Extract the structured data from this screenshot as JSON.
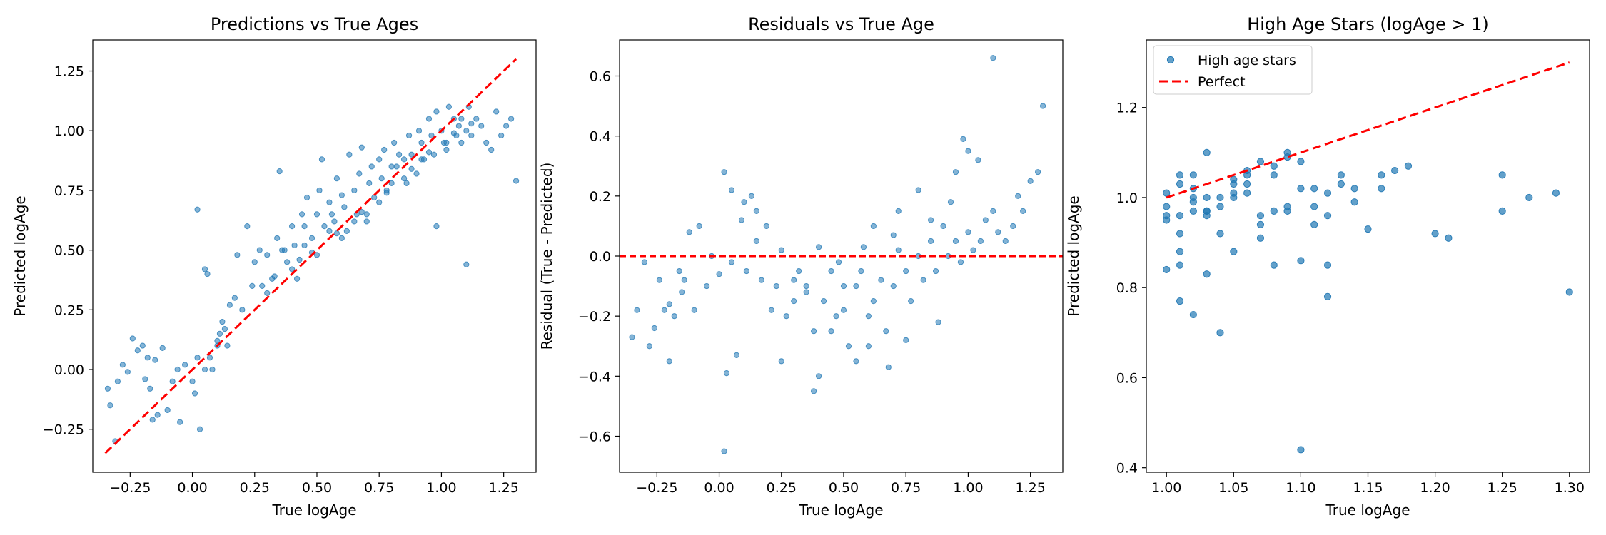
{
  "colors": {
    "points": "#1f77b4",
    "reference_line": "#ff0000",
    "legend_border": "#cccccc"
  },
  "chart_data": [
    {
      "type": "scatter",
      "title": "Predictions vs True Ages",
      "xlabel": "True logAge",
      "ylabel": "Predicted logAge",
      "xlim": [
        -0.4,
        1.38
      ],
      "ylim": [
        -0.43,
        1.38
      ],
      "xticks": [
        -0.25,
        0.0,
        0.25,
        0.5,
        0.75,
        1.0,
        1.25
      ],
      "xtick_labels": [
        "−0.25",
        "0.00",
        "0.25",
        "0.50",
        "0.75",
        "1.00",
        "1.25"
      ],
      "yticks": [
        -0.25,
        0.0,
        0.25,
        0.5,
        0.75,
        1.0,
        1.25
      ],
      "ytick_labels": [
        "−0.25",
        "0.00",
        "0.25",
        "0.50",
        "0.75",
        "1.00",
        "1.25"
      ],
      "grid": false,
      "legend": null,
      "marker_alpha": 0.55,
      "reference_line": {
        "x": [
          -0.35,
          1.3
        ],
        "y": [
          -0.35,
          1.3
        ],
        "style": "dashed",
        "color": "#ff0000"
      },
      "x": [
        -0.34,
        -0.33,
        -0.31,
        -0.3,
        -0.28,
        -0.26,
        -0.24,
        -0.22,
        -0.2,
        -0.19,
        -0.18,
        -0.17,
        -0.16,
        -0.15,
        -0.14,
        -0.12,
        -0.1,
        -0.08,
        -0.06,
        -0.05,
        -0.03,
        0.0,
        0.01,
        0.02,
        0.03,
        0.05,
        0.06,
        0.07,
        0.08,
        0.1,
        0.11,
        0.12,
        0.13,
        0.14,
        0.15,
        0.17,
        0.18,
        0.2,
        0.22,
        0.24,
        0.25,
        0.27,
        0.28,
        0.3,
        0.32,
        0.34,
        0.35,
        0.36,
        0.38,
        0.4,
        0.41,
        0.42,
        0.44,
        0.45,
        0.46,
        0.48,
        0.5,
        0.51,
        0.52,
        0.53,
        0.55,
        0.56,
        0.57,
        0.58,
        0.6,
        0.61,
        0.62,
        0.63,
        0.65,
        0.66,
        0.67,
        0.68,
        0.7,
        0.71,
        0.72,
        0.73,
        0.75,
        0.76,
        0.77,
        0.78,
        0.8,
        0.81,
        0.82,
        0.83,
        0.85,
        0.86,
        0.87,
        0.88,
        0.9,
        0.91,
        0.92,
        0.93,
        0.95,
        0.96,
        0.97,
        0.98,
        1.0,
        1.01,
        1.02,
        1.03,
        1.05,
        1.06,
        1.07,
        1.08,
        1.1,
        1.11,
        1.12,
        1.14,
        1.16,
        1.18,
        1.2,
        1.22,
        1.24,
        1.26,
        1.28,
        1.3,
        0.02,
        0.05,
        0.1,
        0.37,
        0.5,
        0.6,
        0.7,
        0.75,
        0.8,
        0.85,
        0.92,
        0.98,
        1.02,
        1.08,
        1.1,
        0.65,
        0.55,
        0.45,
        0.4,
        0.3,
        0.88,
        0.95,
        1.05,
        1.12,
        0.78,
        0.68,
        0.58,
        0.48,
        0.43,
        0.33
      ],
      "y": [
        -0.08,
        -0.15,
        -0.3,
        -0.05,
        0.02,
        -0.01,
        0.13,
        0.08,
        0.1,
        -0.04,
        0.05,
        -0.08,
        -0.21,
        0.04,
        -0.19,
        0.09,
        -0.17,
        -0.05,
        0.0,
        -0.22,
        0.02,
        -0.05,
        -0.1,
        0.67,
        -0.25,
        0.42,
        0.4,
        0.05,
        0.0,
        0.1,
        0.15,
        0.2,
        0.17,
        0.1,
        0.27,
        0.3,
        0.48,
        0.25,
        0.6,
        0.35,
        0.45,
        0.5,
        0.35,
        0.48,
        0.38,
        0.55,
        0.83,
        0.5,
        0.45,
        0.6,
        0.52,
        0.38,
        0.65,
        0.6,
        0.72,
        0.55,
        0.65,
        0.75,
        0.88,
        0.6,
        0.7,
        0.65,
        0.62,
        0.8,
        0.73,
        0.68,
        0.58,
        0.9,
        0.75,
        0.65,
        0.82,
        0.93,
        0.65,
        0.78,
        0.85,
        0.72,
        0.88,
        0.8,
        0.92,
        0.75,
        0.85,
        0.95,
        0.85,
        0.9,
        0.88,
        0.78,
        0.98,
        0.9,
        0.82,
        1.0,
        0.95,
        0.88,
        1.05,
        0.98,
        0.9,
        1.08,
        1.0,
        0.95,
        0.92,
        1.1,
        1.05,
        0.98,
        1.02,
        0.95,
        1.0,
        1.1,
        0.98,
        1.05,
        1.02,
        0.95,
        0.92,
        1.08,
        0.98,
        1.02,
        1.05,
        0.79,
        0.05,
        0.0,
        0.12,
        0.5,
        0.48,
        0.55,
        0.62,
        0.7,
        0.78,
        0.8,
        0.88,
        0.6,
        0.95,
        1.05,
        0.44,
        0.62,
        0.58,
        0.52,
        0.42,
        0.32,
        0.84,
        0.91,
        0.99,
        1.03,
        0.74,
        0.66,
        0.57,
        0.49,
        0.46,
        0.39
      ]
    },
    {
      "type": "scatter",
      "title": "Residuals vs True Age",
      "xlabel": "True logAge",
      "ylabel": "Residual (True - Predicted)",
      "xlim": [
        -0.4,
        1.38
      ],
      "ylim": [
        -0.72,
        0.72
      ],
      "xticks": [
        -0.25,
        0.0,
        0.25,
        0.5,
        0.75,
        1.0,
        1.25
      ],
      "xtick_labels": [
        "−0.25",
        "0.00",
        "0.25",
        "0.50",
        "0.75",
        "1.00",
        "1.25"
      ],
      "yticks": [
        -0.6,
        -0.4,
        -0.2,
        0.0,
        0.2,
        0.4,
        0.6
      ],
      "ytick_labels": [
        "−0.6",
        "−0.4",
        "−0.2",
        "0.0",
        "0.2",
        "0.4",
        "0.6"
      ],
      "grid": false,
      "legend": null,
      "marker_alpha": 0.55,
      "reference_line": {
        "y": 0.0,
        "style": "dashed",
        "color": "#ff0000"
      },
      "x": [
        -0.35,
        -0.33,
        -0.3,
        -0.28,
        -0.26,
        -0.24,
        -0.22,
        -0.2,
        -0.18,
        -0.16,
        -0.14,
        -0.12,
        -0.1,
        -0.08,
        -0.05,
        -0.03,
        0.0,
        0.02,
        0.03,
        0.05,
        0.07,
        0.09,
        0.11,
        0.13,
        0.15,
        0.17,
        0.19,
        0.21,
        0.23,
        0.25,
        0.27,
        0.3,
        0.32,
        0.35,
        0.38,
        0.4,
        0.42,
        0.45,
        0.47,
        0.5,
        0.52,
        0.55,
        0.57,
        0.6,
        0.62,
        0.65,
        0.67,
        0.7,
        0.72,
        0.75,
        0.77,
        0.8,
        0.82,
        0.85,
        0.87,
        0.9,
        0.92,
        0.95,
        0.97,
        1.0,
        1.02,
        1.05,
        1.07,
        1.1,
        1.12,
        1.15,
        1.18,
        1.2,
        1.22,
        1.25,
        1.28,
        1.3,
        0.02,
        1.1,
        0.38,
        0.68,
        0.75,
        0.88,
        0.55,
        0.6,
        0.45,
        0.5,
        0.35,
        0.4,
        0.62,
        0.72,
        0.8,
        0.95,
        1.0,
        0.98,
        1.04,
        0.93,
        0.85,
        0.7,
        0.58,
        0.48,
        0.3,
        0.25,
        0.15,
        0.1,
        0.05,
        -0.15,
        -0.2
      ],
      "y": [
        -0.27,
        -0.18,
        -0.02,
        -0.3,
        -0.24,
        -0.08,
        -0.18,
        -0.35,
        -0.2,
        -0.05,
        -0.08,
        0.08,
        -0.18,
        0.1,
        -0.1,
        0.0,
        -0.06,
        0.28,
        -0.39,
        -0.02,
        -0.33,
        0.12,
        -0.05,
        0.2,
        0.05,
        -0.08,
        0.1,
        -0.18,
        -0.1,
        -0.35,
        -0.2,
        -0.15,
        -0.05,
        -0.1,
        -0.25,
        -0.4,
        -0.15,
        -0.05,
        -0.2,
        -0.1,
        -0.3,
        -0.1,
        -0.05,
        -0.2,
        -0.15,
        -0.08,
        -0.25,
        -0.1,
        0.02,
        -0.05,
        -0.15,
        0.0,
        -0.08,
        0.05,
        -0.05,
        0.1,
        0.0,
        0.05,
        -0.02,
        0.08,
        0.02,
        0.05,
        0.12,
        0.15,
        0.08,
        0.05,
        0.1,
        0.2,
        0.15,
        0.25,
        0.28,
        0.5,
        -0.65,
        0.66,
        -0.45,
        -0.37,
        -0.28,
        -0.22,
        -0.35,
        -0.3,
        -0.25,
        -0.18,
        -0.12,
        0.03,
        0.1,
        0.15,
        0.22,
        0.28,
        0.35,
        0.39,
        0.32,
        0.18,
        0.12,
        0.07,
        0.03,
        -0.02,
        -0.08,
        0.02,
        0.15,
        0.18,
        0.22,
        -0.12,
        -0.16
      ]
    },
    {
      "type": "scatter",
      "title": "High Age Stars (logAge > 1)",
      "xlabel": "True logAge",
      "ylabel": "Predicted logAge",
      "xlim": [
        0.985,
        1.315
      ],
      "ylim": [
        0.39,
        1.35
      ],
      "xticks": [
        1.0,
        1.05,
        1.1,
        1.15,
        1.2,
        1.25,
        1.3
      ],
      "xtick_labels": [
        "1.00",
        "1.05",
        "1.10",
        "1.15",
        "1.20",
        "1.25",
        "1.30"
      ],
      "yticks": [
        0.4,
        0.6,
        0.8,
        1.0,
        1.2
      ],
      "ytick_labels": [
        "0.4",
        "0.6",
        "0.8",
        "1.0",
        "1.2"
      ],
      "grid": false,
      "legend": {
        "position": "top-left",
        "entries": [
          "High age stars",
          "Perfect"
        ]
      },
      "marker_alpha": 0.7,
      "series": [
        {
          "name": "High age stars",
          "x": [
            1.0,
            1.0,
            1.01,
            1.0,
            1.01,
            1.01,
            1.0,
            1.01,
            1.02,
            1.01,
            1.02,
            1.02,
            1.03,
            1.03,
            1.03,
            1.04,
            1.04,
            1.05,
            1.05,
            1.05,
            1.06,
            1.06,
            1.07,
            1.07,
            1.08,
            1.08,
            1.09,
            1.09,
            1.1,
            1.1,
            1.11,
            1.11,
            1.12,
            1.12,
            1.13,
            1.14,
            1.15,
            1.16,
            1.17,
            1.18,
            1.2,
            1.21,
            1.25,
            1.25,
            1.27,
            1.29,
            1.3,
            1.1,
            1.04,
            1.02,
            1.01,
            1.03,
            1.08,
            1.11,
            1.12,
            1.02,
            1.06,
            1.09,
            1.05,
            1.07,
            1.03,
            1.04,
            1.06,
            1.08,
            1.13,
            1.14,
            1.0,
            1.01,
            1.02,
            1.03,
            1.05,
            1.07,
            1.09,
            1.1,
            1.12,
            1.16
          ],
          "y": [
            1.01,
            0.98,
            1.05,
            0.84,
            0.85,
            0.77,
            0.96,
            0.92,
            0.97,
            0.88,
            1.05,
            0.74,
            1.1,
            0.83,
            0.97,
            0.7,
            0.92,
            1.03,
            0.88,
            1.0,
            1.01,
            1.05,
            1.08,
            0.91,
            0.85,
            1.07,
            1.1,
            0.97,
            1.08,
            0.44,
            1.02,
            0.94,
            0.85,
            0.78,
            1.05,
            1.02,
            0.93,
            1.05,
            1.06,
            1.07,
            0.92,
            0.91,
            0.97,
            1.05,
            1.0,
            1.01,
            0.79,
            0.86,
            1.0,
            1.02,
            1.03,
            0.96,
            0.97,
            0.98,
            1.01,
            1.0,
            1.03,
            1.09,
            1.04,
            0.96,
            1.0,
            0.98,
            1.06,
            1.05,
            1.03,
            0.99,
            0.95,
            0.96,
            0.99,
            0.97,
            1.01,
            0.94,
            0.98,
            1.02,
            0.96,
            1.02
          ]
        },
        {
          "name": "Perfect",
          "type": "line",
          "style": "dashed",
          "color": "#ff0000",
          "x": [
            1.0,
            1.3
          ],
          "y": [
            1.0,
            1.3
          ]
        }
      ]
    }
  ]
}
